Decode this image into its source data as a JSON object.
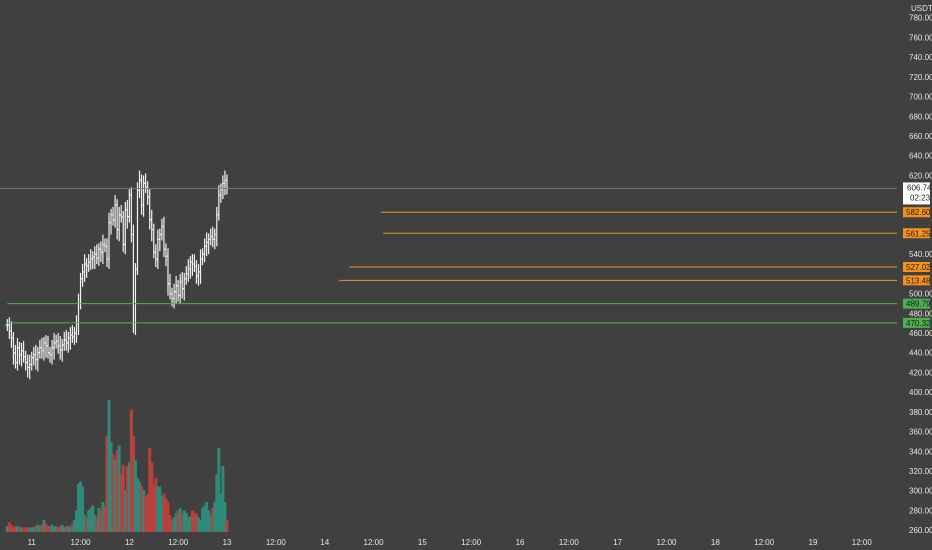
{
  "chart_data": {
    "type": "ohlc-bar-with-volume",
    "currency_label": "USDT",
    "y_ticks": [
      780,
      760,
      740,
      720,
      700,
      680,
      660,
      640,
      620,
      540,
      500,
      480,
      460,
      440,
      420,
      400,
      380,
      360,
      340,
      320,
      300,
      280,
      260
    ],
    "ylim": [
      254,
      798
    ],
    "x_labels": [
      {
        "label": "11",
        "x": 1
      },
      {
        "label": "12:00",
        "x": 3
      },
      {
        "label": "12",
        "x": 5
      },
      {
        "label": "12:00",
        "x": 7
      },
      {
        "label": "13",
        "x": 9
      },
      {
        "label": "12:00",
        "x": 11
      },
      {
        "label": "14",
        "x": 13
      },
      {
        "label": "12:00",
        "x": 15
      },
      {
        "label": "15",
        "x": 17
      },
      {
        "label": "12:00",
        "x": 19
      },
      {
        "label": "16",
        "x": 21
      },
      {
        "label": "12:00",
        "x": 23
      },
      {
        "label": "17",
        "x": 25
      },
      {
        "label": "12:00",
        "x": 27
      },
      {
        "label": "18",
        "x": 29
      },
      {
        "label": "12:00",
        "x": 31
      },
      {
        "label": "19",
        "x": 33
      },
      {
        "label": "12:00",
        "x": 35
      }
    ],
    "xlim": [
      -0.3,
      36.4
    ],
    "current_price": {
      "value": 606.74,
      "countdown": "02:23",
      "line_color": "#7b7b7b"
    },
    "horizontal_levels": [
      {
        "value": 582.6,
        "label": "582.60",
        "color": "#f7931a"
      },
      {
        "value": 561.25,
        "label": "561.25",
        "color": "#f7931a"
      },
      {
        "value": 527.02,
        "label": "527.02",
        "color": "#f7931a"
      },
      {
        "value": 513.48,
        "label": "513.48",
        "color": "#f7931a"
      },
      {
        "value": 489.79,
        "label": "489.79",
        "color": "#4caf50"
      },
      {
        "value": 470.32,
        "label": "470.32",
        "color": "#4caf50"
      }
    ],
    "level_start_x": [
      15.3,
      15.4,
      14.0,
      13.6,
      0,
      0
    ],
    "bar_time_step": 0.0833,
    "closes": [
      468,
      462,
      455,
      440,
      430,
      445,
      438,
      442,
      436,
      430,
      425,
      428,
      435,
      438,
      433,
      440,
      445,
      442,
      450,
      447,
      440,
      438,
      445,
      450,
      452,
      447,
      443,
      448,
      453,
      450,
      455,
      458,
      456,
      460,
      470,
      490,
      515,
      522,
      530,
      528,
      532,
      535,
      537,
      540,
      536,
      545,
      542,
      550,
      548,
      535,
      572,
      580,
      575,
      590,
      565,
      580,
      578,
      550,
      585,
      578,
      600,
      560,
      470,
      525,
      605,
      615,
      590,
      612,
      608,
      598,
      575,
      565,
      542,
      535,
      555,
      560,
      568,
      545,
      538,
      510,
      500,
      495,
      502,
      508,
      498,
      512,
      505,
      515,
      520,
      525,
      532,
      530,
      528,
      518,
      522,
      535,
      540,
      548,
      552,
      555,
      558,
      555,
      560,
      580,
      600,
      606,
      612,
      615,
      606.74
    ],
    "volumes": [
      5,
      8,
      6,
      4,
      5,
      5,
      4,
      4,
      3,
      4,
      4,
      3,
      4,
      4,
      5,
      6,
      5,
      6,
      10,
      7,
      5,
      5,
      6,
      4,
      5,
      4,
      5,
      6,
      4,
      5,
      5,
      4,
      7,
      10,
      18,
      40,
      42,
      38,
      14,
      12,
      18,
      20,
      22,
      14,
      12,
      20,
      18,
      25,
      22,
      80,
      110,
      75,
      65,
      60,
      68,
      72,
      48,
      56,
      35,
      55,
      58,
      102,
      80,
      60,
      45,
      42,
      38,
      35,
      30,
      32,
      70,
      58,
      40,
      45,
      38,
      38,
      30,
      32,
      28,
      25,
      14,
      10,
      12,
      16,
      18,
      20,
      15,
      18,
      16,
      12,
      13,
      18,
      16,
      15,
      12,
      10,
      20,
      22,
      25,
      18,
      14,
      20,
      25,
      48,
      70,
      32,
      55,
      25,
      10
    ]
  }
}
